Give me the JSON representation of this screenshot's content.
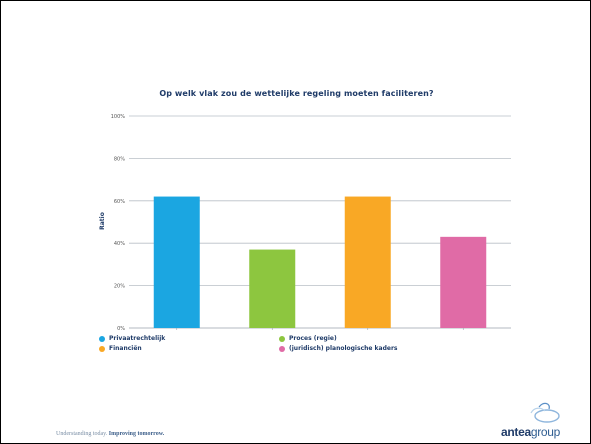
{
  "slide": {
    "tagline_plain": "Understanding today.",
    "tagline_bold": "Improving tomorrow.",
    "logo_brand": "antea",
    "logo_group": "group"
  },
  "chart_data": {
    "type": "bar",
    "title": "Op welk vlak zou de wettelijke regeling moeten faciliteren?",
    "xlabel": "",
    "ylabel": "Ratio",
    "categories": [
      "Privaatrechtelijk",
      "Proces (regie)",
      "Financiën",
      "(juridisch) planologische kaders"
    ],
    "values": [
      62,
      37,
      62,
      43
    ],
    "colors": [
      "#1ba6e1",
      "#8dc63f",
      "#f9a825",
      "#e06ba6"
    ],
    "ylim": [
      0,
      100
    ],
    "yticks": [
      "0%",
      "20%",
      "40%",
      "60%",
      "80%",
      "100%"
    ],
    "grid": true,
    "legend_position": "bottom"
  }
}
